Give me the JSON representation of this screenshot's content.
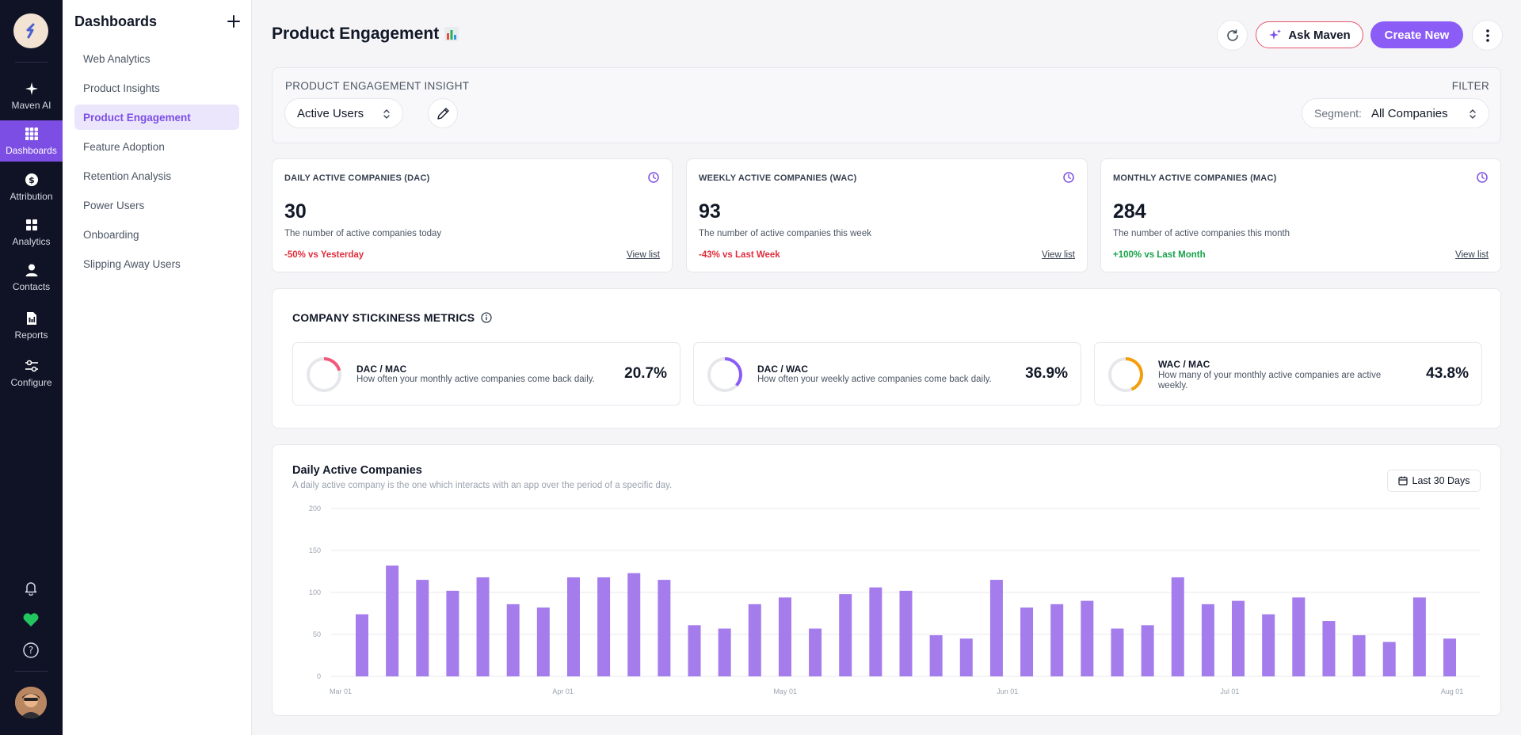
{
  "rail": {
    "items": [
      {
        "label": "Maven AI",
        "icon": "sparkle-icon"
      },
      {
        "label": "Dashboards",
        "icon": "grid-icon",
        "active": true
      },
      {
        "label": "Attribution",
        "icon": "dollar-icon"
      },
      {
        "label": "Analytics",
        "icon": "blocks-icon"
      },
      {
        "label": "Contacts",
        "icon": "person-icon"
      },
      {
        "label": "Reports",
        "icon": "report-icon"
      },
      {
        "label": "Configure",
        "icon": "sliders-icon"
      }
    ]
  },
  "sidebar": {
    "title": "Dashboards",
    "items": [
      {
        "label": "Web Analytics"
      },
      {
        "label": "Product Insights"
      },
      {
        "label": "Product Engagement",
        "active": true
      },
      {
        "label": "Feature Adoption"
      },
      {
        "label": "Retention Analysis"
      },
      {
        "label": "Power Users"
      },
      {
        "label": "Onboarding"
      },
      {
        "label": "Slipping Away Users"
      }
    ]
  },
  "header": {
    "title": "Product Engagement",
    "ask_label": "Ask Maven",
    "create_label": "Create New"
  },
  "insight": {
    "label": "PRODUCT ENGAGEMENT INSIGHT",
    "selected": "Active Users",
    "filter_label": "FILTER",
    "segment_label": "Segment:",
    "segment_value": "All Companies"
  },
  "metrics": [
    {
      "title": "DAILY ACTIVE COMPANIES (DAC)",
      "value": "30",
      "desc": "The number of active companies today",
      "delta": "-50% vs Yesterday",
      "delta_color": "#e02d3c",
      "link": "View list"
    },
    {
      "title": "WEEKLY ACTIVE COMPANIES (WAC)",
      "value": "93",
      "desc": "The number of active companies this week",
      "delta": "-43% vs Last Week",
      "delta_color": "#e02d3c",
      "link": "View list"
    },
    {
      "title": "MONTHLY ACTIVE COMPANIES (MAC)",
      "value": "284",
      "desc": "The number of active companies this month",
      "delta": "+100% vs Last Month",
      "delta_color": "#16a34a",
      "link": "View list"
    }
  ],
  "stickiness": {
    "title": "COMPANY STICKINESS METRICS",
    "items": [
      {
        "name": "DAC / MAC",
        "desc": "How often your monthly active companies come back daily.",
        "pct": "20.7%",
        "value": 0.207,
        "color": "#f2587a"
      },
      {
        "name": "DAC / WAC",
        "desc": "How often your weekly active companies come back daily.",
        "pct": "36.9%",
        "value": 0.369,
        "color": "#8b5cf6"
      },
      {
        "name": "WAC / MAC",
        "desc": "How many of your monthly active companies are active weekly.",
        "pct": "43.8%",
        "value": 0.438,
        "color": "#f59e0b"
      }
    ]
  },
  "daily_chart": {
    "title": "Daily Active Companies",
    "subtitle": "A daily active company is the one which interacts with an app over the period of a specific day.",
    "range_label": "Last 30 Days"
  },
  "chart_data": {
    "type": "bar",
    "title": "Daily Active Companies",
    "xlabel": "",
    "ylabel": "",
    "ylim": [
      0,
      200
    ],
    "y_ticks": [
      "0",
      "50",
      "100",
      "150",
      "200"
    ],
    "x_ticks": [
      "Mar 01",
      "Apr 01",
      "May 01",
      "Jun 01",
      "Jul 01",
      "Aug 01"
    ],
    "color": "#a47cec",
    "grid": true,
    "values": [
      74,
      132,
      115,
      102,
      118,
      86,
      82,
      118,
      118,
      123,
      115,
      61,
      57,
      86,
      94,
      57,
      98,
      106,
      102,
      49,
      45,
      115,
      82,
      86,
      90,
      57,
      61,
      118,
      86,
      90,
      74,
      94,
      66,
      49,
      41,
      94,
      45
    ]
  }
}
